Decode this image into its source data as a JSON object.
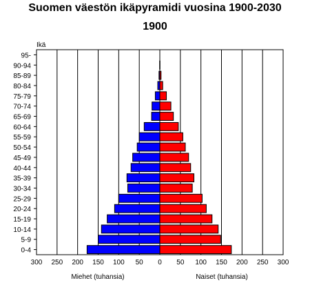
{
  "title": "Suomen väestön ikäpyramidi vuosina 1900-2030",
  "subtitle": "1900",
  "chart_data": {
    "type": "bar",
    "orientation": "horizontal",
    "title": "Suomen väestön ikäpyramidi vuosina 1900-2030",
    "subtitle": "1900",
    "ylabel": "Ikä",
    "categories": [
      "0-4",
      "5-9",
      "10-14",
      "15-19",
      "20-24",
      "25-29",
      "30-34",
      "35-39",
      "40-44",
      "45-49",
      "50-54",
      "55-59",
      "60-64",
      "65-69",
      "70-74",
      "75-79",
      "80-84",
      "85-89",
      "90-94",
      "95-"
    ],
    "series": [
      {
        "name": "Miehet",
        "label": "Miehet (tuhansia)",
        "color": "#0000ff",
        "values": [
          177,
          150,
          142,
          128,
          110,
          100,
          78,
          80,
          70,
          66,
          55,
          50,
          38,
          20,
          19,
          11,
          5,
          2,
          0.5,
          0
        ]
      },
      {
        "name": "Naiset",
        "label": "Naiset (tuhansia)",
        "color": "#ff0000",
        "values": [
          174,
          148,
          142,
          127,
          113,
          103,
          79,
          83,
          75,
          70,
          62,
          56,
          45,
          33,
          27,
          16,
          7,
          3,
          0.5,
          0
        ]
      }
    ],
    "x_ticks_left": [
      "300",
      "250",
      "200",
      "150",
      "100",
      "50",
      "0"
    ],
    "x_ticks_right": [
      "50",
      "100",
      "150",
      "200",
      "250",
      "300"
    ],
    "xlim": [
      0,
      300
    ],
    "grid": true,
    "legend": "none"
  }
}
